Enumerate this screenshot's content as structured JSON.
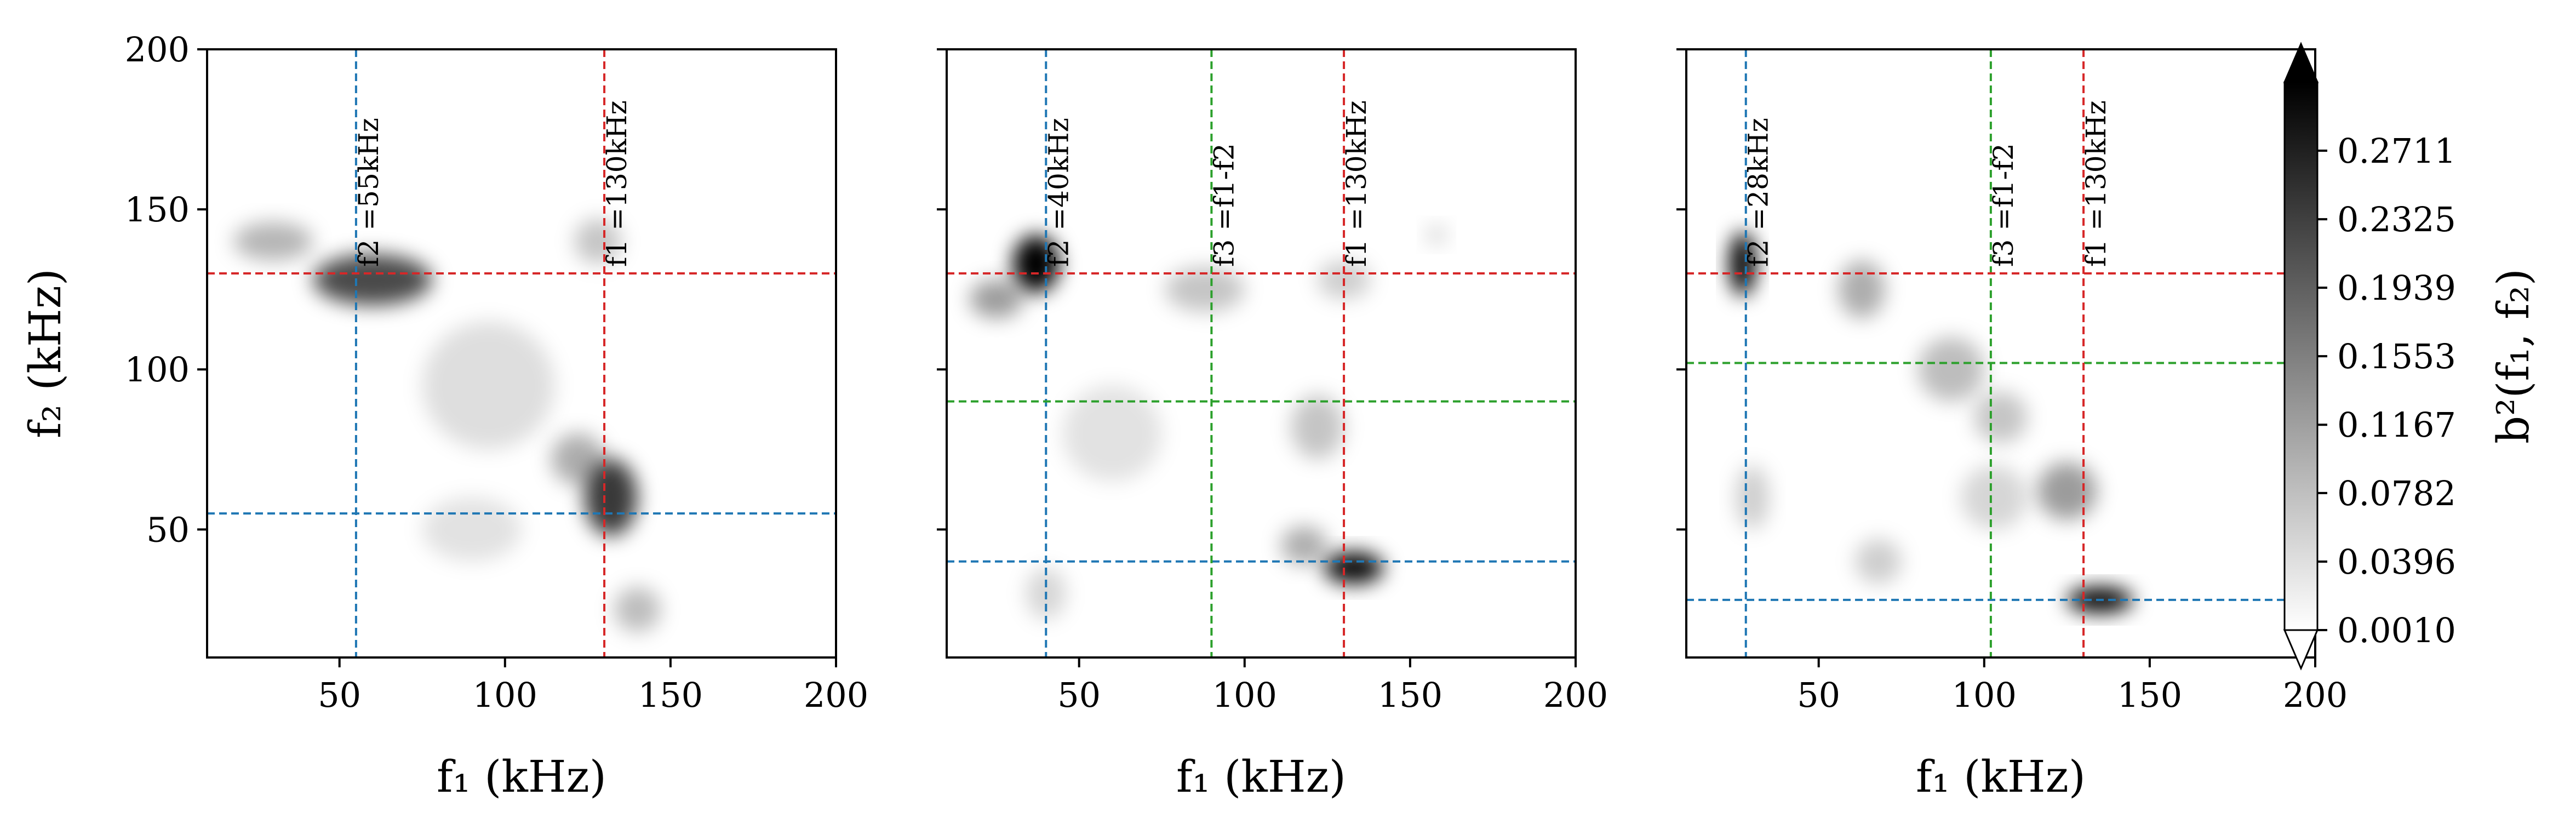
{
  "figure": {
    "colorbar": {
      "label": "b²(f₁, f₂)",
      "ticks": [
        "0.0010",
        "0.0396",
        "0.0782",
        "0.1167",
        "0.1553",
        "0.1939",
        "0.2325",
        "0.2711"
      ],
      "tick_values": [
        0.001,
        0.0396,
        0.0782,
        0.1167,
        0.1553,
        0.1939,
        0.2325,
        0.2711
      ],
      "range": [
        0.001,
        0.3097
      ],
      "colors": [
        "#ffffff",
        "#000000"
      ],
      "extend": "both"
    },
    "line_colors": {
      "f1": "#d62728",
      "f2": "#1f77b4",
      "f3": "#2ca02c"
    }
  },
  "chart_data": [
    {
      "type": "heatmap",
      "xlabel": "f₁ (kHz)",
      "ylabel": "f₂ (kHz)",
      "xlim": [
        10,
        200
      ],
      "ylim": [
        10,
        200
      ],
      "xticks": [
        50,
        100,
        150,
        200
      ],
      "yticks": [
        50,
        100,
        150,
        200
      ],
      "lines": [
        {
          "name": "f2",
          "value": 55,
          "label": "f2 =55kHz",
          "color": "#1f77b4"
        },
        {
          "name": "f1",
          "value": 130,
          "label": "f1 =130kHz",
          "color": "#d62728"
        }
      ],
      "blobs": [
        {
          "f1": 60,
          "f2": 128,
          "level": 0.22,
          "sx": 18,
          "sy": 8
        },
        {
          "f1": 30,
          "f2": 140,
          "level": 0.09,
          "sx": 12,
          "sy": 6
        },
        {
          "f1": 132,
          "f2": 60,
          "level": 0.24,
          "sx": 8,
          "sy": 12
        },
        {
          "f1": 122,
          "f2": 72,
          "level": 0.1,
          "sx": 8,
          "sy": 8
        },
        {
          "f1": 140,
          "f2": 25,
          "level": 0.08,
          "sx": 7,
          "sy": 7
        },
        {
          "f1": 128,
          "f2": 140,
          "level": 0.07,
          "sx": 7,
          "sy": 7
        },
        {
          "f1": 95,
          "f2": 95,
          "level": 0.04,
          "sx": 20,
          "sy": 20
        },
        {
          "f1": 90,
          "f2": 50,
          "level": 0.035,
          "sx": 15,
          "sy": 10
        }
      ]
    },
    {
      "type": "heatmap",
      "xlabel": "f₁ (kHz)",
      "ylabel": "",
      "xlim": [
        10,
        200
      ],
      "ylim": [
        10,
        200
      ],
      "xticks": [
        50,
        100,
        150,
        200
      ],
      "yticks": [
        50,
        100,
        150,
        200
      ],
      "lines": [
        {
          "name": "f2",
          "value": 40,
          "label": "f2 =40kHz",
          "color": "#1f77b4"
        },
        {
          "name": "f3",
          "value": 90,
          "label": "f3 =f1-f2",
          "color": "#2ca02c"
        },
        {
          "name": "f1",
          "value": 130,
          "label": "f1 =130kHz",
          "color": "#d62728"
        }
      ],
      "blobs": [
        {
          "f1": 37,
          "f2": 133,
          "level": 0.31,
          "sx": 7,
          "sy": 9
        },
        {
          "f1": 25,
          "f2": 122,
          "level": 0.12,
          "sx": 8,
          "sy": 6
        },
        {
          "f1": 133,
          "f2": 38,
          "level": 0.3,
          "sx": 9,
          "sy": 5
        },
        {
          "f1": 118,
          "f2": 45,
          "level": 0.1,
          "sx": 7,
          "sy": 6
        },
        {
          "f1": 88,
          "f2": 125,
          "level": 0.07,
          "sx": 12,
          "sy": 7
        },
        {
          "f1": 122,
          "f2": 82,
          "level": 0.07,
          "sx": 8,
          "sy": 10
        },
        {
          "f1": 130,
          "f2": 128,
          "level": 0.06,
          "sx": 8,
          "sy": 6
        },
        {
          "f1": 158,
          "f2": 142,
          "level": 0.05,
          "sx": 3,
          "sy": 3
        },
        {
          "f1": 40,
          "f2": 30,
          "level": 0.05,
          "sx": 6,
          "sy": 8
        },
        {
          "f1": 60,
          "f2": 80,
          "level": 0.035,
          "sx": 15,
          "sy": 15
        }
      ]
    },
    {
      "type": "heatmap",
      "xlabel": "f₁ (kHz)",
      "ylabel": "",
      "xlim": [
        10,
        200
      ],
      "ylim": [
        10,
        200
      ],
      "xticks": [
        50,
        100,
        150,
        200
      ],
      "yticks": [
        50,
        100,
        150,
        200
      ],
      "lines": [
        {
          "name": "f2",
          "value": 28,
          "label": "f2 =28kHz",
          "color": "#1f77b4"
        },
        {
          "name": "f3",
          "value": 102,
          "label": "f3 =f1-f2",
          "color": "#2ca02c"
        },
        {
          "name": "f1",
          "value": 130,
          "label": "f1 =130kHz",
          "color": "#d62728"
        }
      ],
      "blobs": [
        {
          "f1": 27,
          "f2": 133,
          "level": 0.32,
          "sx": 4,
          "sy": 10
        },
        {
          "f1": 135,
          "f2": 28,
          "level": 0.33,
          "sx": 10,
          "sy": 4
        },
        {
          "f1": 63,
          "f2": 125,
          "level": 0.1,
          "sx": 7,
          "sy": 9
        },
        {
          "f1": 90,
          "f2": 100,
          "level": 0.08,
          "sx": 10,
          "sy": 10
        },
        {
          "f1": 125,
          "f2": 62,
          "level": 0.12,
          "sx": 9,
          "sy": 9
        },
        {
          "f1": 105,
          "f2": 85,
          "level": 0.07,
          "sx": 8,
          "sy": 8
        },
        {
          "f1": 68,
          "f2": 40,
          "level": 0.06,
          "sx": 7,
          "sy": 7
        },
        {
          "f1": 30,
          "f2": 60,
          "level": 0.06,
          "sx": 5,
          "sy": 10
        },
        {
          "f1": 103,
          "f2": 60,
          "level": 0.05,
          "sx": 10,
          "sy": 10
        }
      ]
    }
  ]
}
